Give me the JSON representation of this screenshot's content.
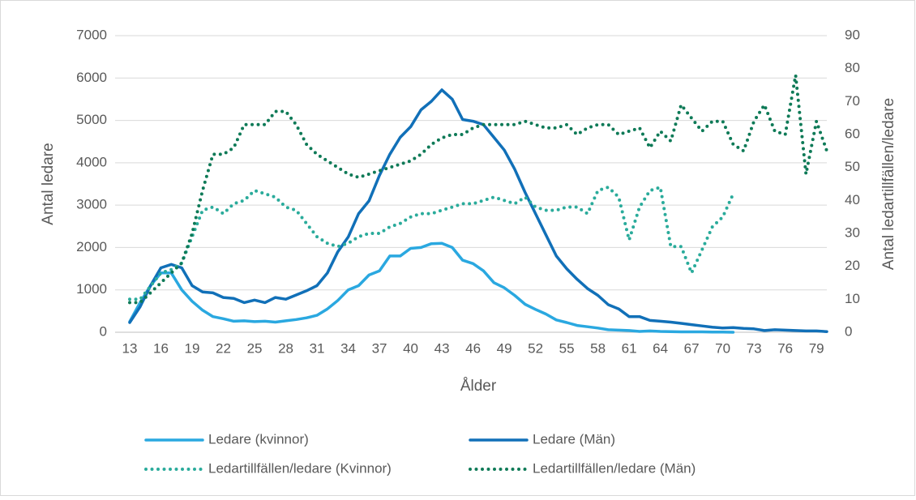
{
  "chart_data": {
    "type": "line",
    "x_label": "Ålder",
    "y_label": "Antal ledare",
    "y2_label": "Antal ledartillfällen/ledare",
    "x": [
      13,
      14,
      15,
      16,
      17,
      18,
      19,
      20,
      21,
      22,
      23,
      24,
      25,
      26,
      27,
      28,
      29,
      30,
      31,
      32,
      33,
      34,
      35,
      36,
      37,
      38,
      39,
      40,
      41,
      42,
      43,
      44,
      45,
      46,
      47,
      48,
      49,
      50,
      51,
      52,
      53,
      54,
      55,
      56,
      57,
      58,
      59,
      60,
      61,
      62,
      63,
      64,
      65,
      66,
      67,
      68,
      69,
      70,
      71,
      72,
      73,
      74,
      75,
      76,
      77,
      78,
      79,
      80
    ],
    "xlim": [
      13,
      80
    ],
    "xticks": [
      13,
      16,
      19,
      22,
      25,
      28,
      31,
      34,
      37,
      40,
      43,
      46,
      49,
      52,
      55,
      58,
      61,
      64,
      67,
      70,
      73,
      76,
      79
    ],
    "ylim": [
      0,
      7000
    ],
    "yticks": [
      0,
      1000,
      2000,
      3000,
      4000,
      5000,
      6000,
      7000
    ],
    "y2lim": [
      0,
      90
    ],
    "y2ticks": [
      0,
      10,
      20,
      30,
      40,
      50,
      60,
      70,
      80,
      90
    ],
    "grid": true,
    "legend": "bottom",
    "series": [
      {
        "name": "Ledare (kvinnor)",
        "color": "#2aa8e0",
        "style": "solid",
        "values": [
          250,
          700,
          1100,
          1400,
          1400,
          1000,
          730,
          520,
          370,
          320,
          260,
          270,
          250,
          260,
          240,
          270,
          300,
          340,
          400,
          550,
          750,
          1000,
          1100,
          1350,
          1450,
          1800,
          1800,
          1980,
          2000,
          2090,
          2100,
          2000,
          1700,
          1620,
          1450,
          1170,
          1050,
          870,
          660,
          540,
          430,
          290,
          230,
          160,
          130,
          100,
          60,
          50,
          40,
          20,
          30,
          20,
          15,
          10,
          10,
          10,
          5,
          5,
          0,
          null,
          null,
          null,
          null,
          null,
          null,
          null,
          null,
          null
        ]
      },
      {
        "name": "Ledare (Män)",
        "color": "#1170b8",
        "style": "solid",
        "values": [
          230,
          600,
          1100,
          1520,
          1600,
          1520,
          1100,
          950,
          930,
          820,
          800,
          700,
          760,
          700,
          820,
          780,
          880,
          980,
          1100,
          1400,
          1900,
          2250,
          2800,
          3100,
          3700,
          4200,
          4600,
          4850,
          5250,
          5450,
          5720,
          5500,
          5020,
          4980,
          4900,
          4600,
          4300,
          3850,
          3300,
          2800,
          2300,
          1800,
          1500,
          1250,
          1030,
          870,
          650,
          550,
          370,
          370,
          280,
          260,
          240,
          210,
          180,
          150,
          120,
          100,
          110,
          90,
          80,
          40,
          60,
          50,
          40,
          30,
          30,
          15
        ]
      },
      {
        "name": "Ledartillfällen/ledare (Kvinnor)",
        "color": "#2aab9b",
        "style": "dotted",
        "axis": "y2",
        "values": [
          10,
          10,
          14,
          18,
          19,
          21,
          29,
          37,
          38,
          36,
          39,
          40,
          43,
          42,
          41,
          38,
          37,
          33,
          29,
          27,
          26,
          27,
          29,
          30,
          30,
          32,
          33,
          35,
          36,
          36,
          37,
          38,
          39,
          39,
          40,
          41,
          40,
          39,
          41,
          38,
          37,
          37,
          38,
          38,
          36,
          43,
          44,
          41,
          28,
          38,
          43,
          44,
          26,
          26,
          18,
          25,
          32,
          35,
          42,
          null,
          null,
          null,
          null,
          null,
          null,
          null,
          null,
          null
        ]
      },
      {
        "name": "Ledartillfällen/ledare (Män)",
        "color": "#0e7a57",
        "style": "dotted",
        "axis": "y2",
        "values": [
          9,
          9,
          12,
          15,
          18,
          21,
          30,
          43,
          54,
          54,
          56,
          63,
          63,
          63,
          67,
          67,
          63,
          57,
          54,
          52,
          50,
          48,
          47,
          48,
          49,
          50,
          51,
          52,
          54,
          57,
          59,
          60,
          60,
          62,
          63,
          63,
          63,
          63,
          64,
          63,
          62,
          62,
          63,
          60,
          62,
          63,
          63,
          60,
          61,
          62,
          56,
          61,
          58,
          69,
          65,
          61,
          64,
          64,
          57,
          55,
          64,
          69,
          61,
          60,
          78,
          48,
          64,
          55
        ]
      }
    ]
  }
}
